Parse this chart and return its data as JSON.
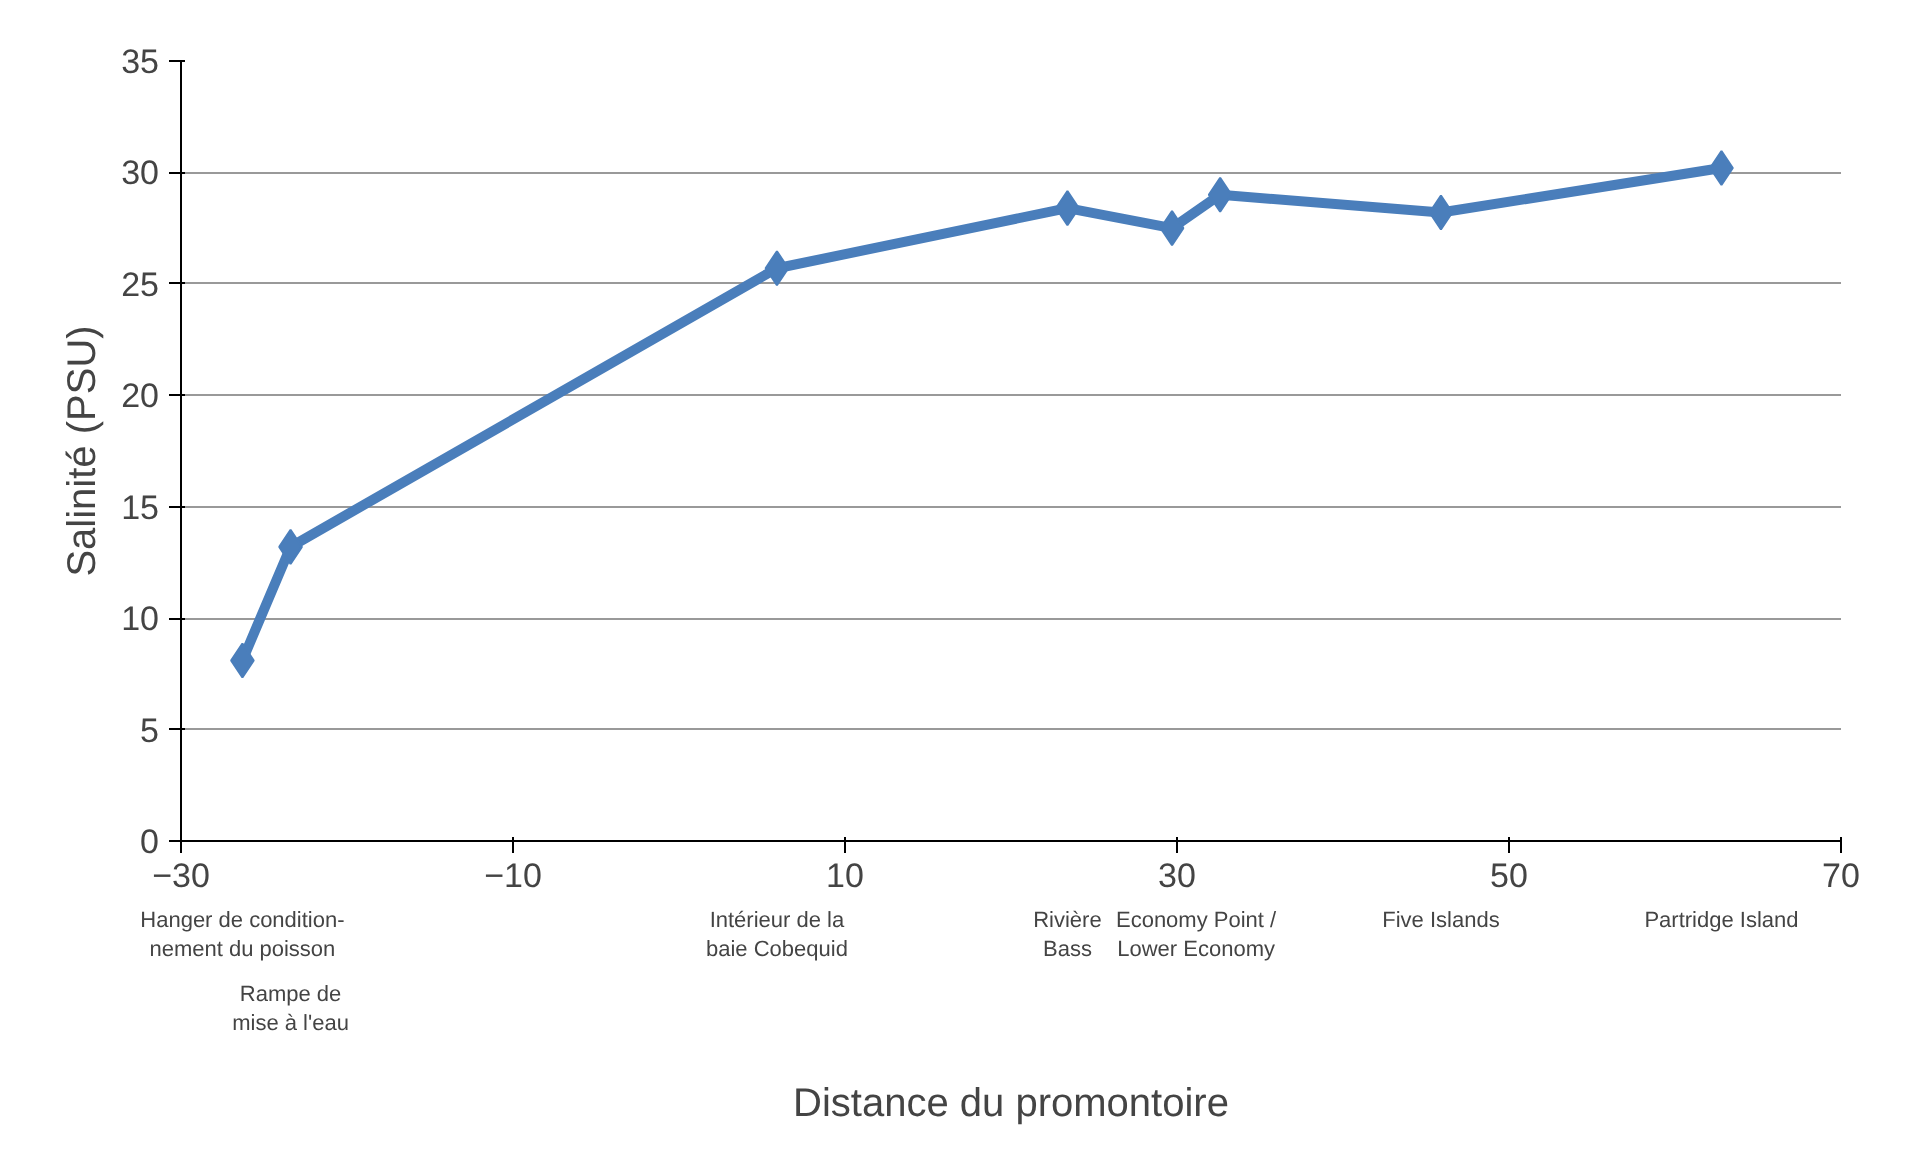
{
  "chart_data": {
    "type": "line",
    "xlabel": "Distance du promontoire",
    "ylabel": "Salinité (PSU)",
    "x": [
      -26.3,
      -23.4,
      5.9,
      23.4,
      29.7,
      32.6,
      45.9,
      62.8
    ],
    "series": [
      {
        "color": "#4a7ebb",
        "values": [
          8.1,
          13.2,
          25.7,
          28.4,
          27.5,
          29.0,
          28.2,
          30.2
        ]
      }
    ],
    "xlim": [
      -30,
      70
    ],
    "xticks": [
      -30,
      -10,
      10,
      30,
      50,
      70
    ],
    "ylim": [
      0,
      35
    ],
    "yticks": [
      0,
      5,
      10,
      15,
      20,
      25,
      30,
      35
    ],
    "grid": "y",
    "marker": "diamond",
    "line_style": "solid",
    "annotations": [
      "Hanger de condition-\nnement du poisson",
      "Rampe de\nmise à l'eau",
      "Intérieur de la\nbaie Cobequid",
      "Rivière\nBass",
      "Economy Point /\nLower Economy",
      "Five Islands",
      "Partridge Island"
    ]
  }
}
